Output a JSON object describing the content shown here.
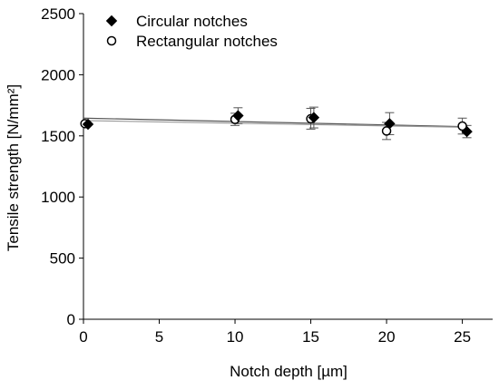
{
  "chart_data": {
    "type": "scatter",
    "xlabel": "Notch depth [µm]",
    "ylabel": "Tensile strength [N/mm²]",
    "xlim": [
      0,
      27
    ],
    "ylim": [
      0,
      2500
    ],
    "xticks": [
      0,
      5,
      10,
      15,
      20,
      25
    ],
    "yticks": [
      0,
      500,
      1000,
      1500,
      2000,
      2500
    ],
    "xtick_labels": [
      "0",
      "5",
      "10",
      "15",
      "20",
      "25"
    ],
    "ytick_labels": [
      "0",
      "500",
      "1000",
      "1500",
      "2000",
      "2500"
    ],
    "grid": false,
    "legend_position": "top-left",
    "series": [
      {
        "name": "Circular notches",
        "marker": "filled-diamond",
        "color": "#000000",
        "points": [
          {
            "x": 0.3,
            "y": 1595,
            "err": 0
          },
          {
            "x": 10.2,
            "y": 1665,
            "err": 65
          },
          {
            "x": 15.2,
            "y": 1650,
            "err": 85
          },
          {
            "x": 20.2,
            "y": 1600,
            "err": 90
          },
          {
            "x": 25.3,
            "y": 1535,
            "err": 50
          }
        ],
        "trendline": {
          "x": [
            0,
            25.3
          ],
          "y": [
            1645,
            1575
          ],
          "color": "#555555"
        }
      },
      {
        "name": "Rectangular notches",
        "marker": "open-circle",
        "color": "#000000",
        "points": [
          {
            "x": 0.1,
            "y": 1600,
            "err": 0
          },
          {
            "x": 10.0,
            "y": 1635,
            "err": 50
          },
          {
            "x": 15.0,
            "y": 1640,
            "err": 85
          },
          {
            "x": 20.0,
            "y": 1540,
            "err": 70
          },
          {
            "x": 25.0,
            "y": 1580,
            "err": 65
          }
        ],
        "trendline": {
          "x": [
            0,
            25.3
          ],
          "y": [
            1625,
            1570
          ],
          "color": "#999999"
        }
      }
    ]
  }
}
